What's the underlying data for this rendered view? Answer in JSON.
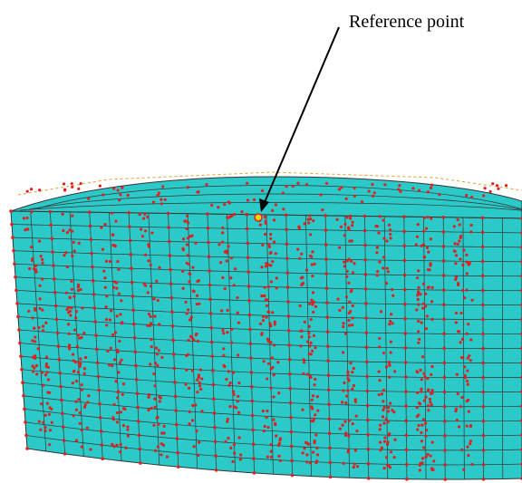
{
  "annotation": {
    "label": "Reference point"
  }
}
